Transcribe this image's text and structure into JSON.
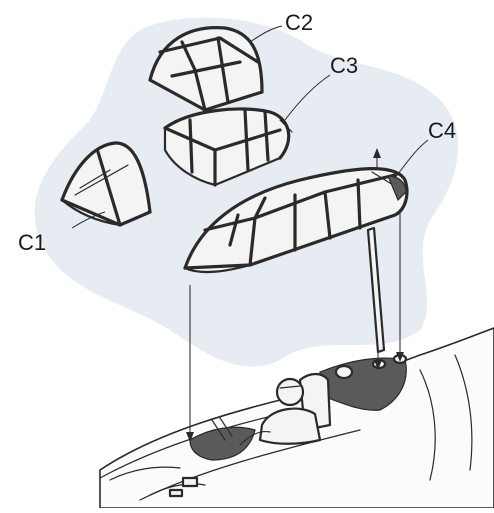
{
  "diagram": {
    "parts": [
      {
        "id": "c1",
        "label": "C1"
      },
      {
        "id": "c2",
        "label": "C2"
      },
      {
        "id": "c3",
        "label": "C3"
      },
      {
        "id": "c4",
        "label": "C4"
      }
    ],
    "colors": {
      "background": "#ffffff",
      "shadow_wash": "#dfe4ee",
      "ink": "#2a2a2a",
      "cockpit_dark": "#5a5a5a"
    }
  }
}
